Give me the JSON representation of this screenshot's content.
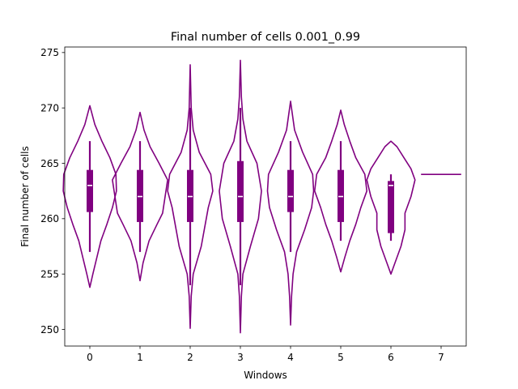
{
  "chart_data": {
    "type": "violin",
    "title": "Final number of cells 0.001_0.99",
    "xlabel": "Windows",
    "ylabel": "Final number of cells",
    "xlim": [
      -0.5,
      7.5
    ],
    "ylim": [
      248.5,
      275.5
    ],
    "x_ticks": [
      "0",
      "1",
      "2",
      "3",
      "4",
      "5",
      "6",
      "7"
    ],
    "y_ticks": [
      "250",
      "255",
      "260",
      "265",
      "270",
      "275"
    ],
    "color": "#800080",
    "median_color": "#ffffff",
    "series": [
      {
        "window": 0,
        "min": 257,
        "q1": 260.6,
        "median": 263,
        "q3": 264.4,
        "max": 267,
        "profile": [
          [
            253.8,
            0.0
          ],
          [
            255,
            0.06
          ],
          [
            256.5,
            0.14
          ],
          [
            258,
            0.22
          ],
          [
            259.5,
            0.34
          ],
          [
            261,
            0.45
          ],
          [
            262.5,
            0.53
          ],
          [
            264,
            0.52
          ],
          [
            265.5,
            0.4
          ],
          [
            267,
            0.24
          ],
          [
            268.5,
            0.1
          ],
          [
            270.2,
            0.0
          ]
        ]
      },
      {
        "window": 1,
        "min": 257,
        "q1": 259.7,
        "median": 262,
        "q3": 264.4,
        "max": 267,
        "profile": [
          [
            254.4,
            0.0
          ],
          [
            256,
            0.06
          ],
          [
            258,
            0.18
          ],
          [
            259.5,
            0.34
          ],
          [
            260.5,
            0.45
          ],
          [
            262,
            0.5
          ],
          [
            263.5,
            0.55
          ],
          [
            265,
            0.38
          ],
          [
            266.5,
            0.2
          ],
          [
            268,
            0.08
          ],
          [
            269.6,
            0.0
          ]
        ]
      },
      {
        "window": 2,
        "min": 254,
        "q1": 259.7,
        "median": 262,
        "q3": 264.4,
        "max": 270,
        "profile": [
          [
            250.1,
            0.0
          ],
          [
            253,
            0.02
          ],
          [
            255,
            0.06
          ],
          [
            257.5,
            0.22
          ],
          [
            259.5,
            0.3
          ],
          [
            261,
            0.36
          ],
          [
            262.5,
            0.45
          ],
          [
            264,
            0.41
          ],
          [
            266,
            0.18
          ],
          [
            268,
            0.06
          ],
          [
            270,
            0.02
          ],
          [
            273.9,
            0.0
          ]
        ]
      },
      {
        "window": 3,
        "min": 254,
        "q1": 259.7,
        "median": 262,
        "q3": 265.2,
        "max": 270,
        "profile": [
          [
            249.7,
            0.0
          ],
          [
            253,
            0.02
          ],
          [
            255,
            0.05
          ],
          [
            257.5,
            0.2
          ],
          [
            260,
            0.36
          ],
          [
            262.5,
            0.42
          ],
          [
            265,
            0.33
          ],
          [
            267,
            0.13
          ],
          [
            269,
            0.05
          ],
          [
            271,
            0.02
          ],
          [
            274.3,
            0.0
          ]
        ]
      },
      {
        "window": 4,
        "min": 257,
        "q1": 260.6,
        "median": 262,
        "q3": 264.4,
        "max": 267,
        "profile": [
          [
            250.4,
            0.0
          ],
          [
            253,
            0.02
          ],
          [
            255,
            0.05
          ],
          [
            257,
            0.12
          ],
          [
            259,
            0.28
          ],
          [
            261,
            0.42
          ],
          [
            262.5,
            0.46
          ],
          [
            264,
            0.44
          ],
          [
            266,
            0.24
          ],
          [
            268,
            0.08
          ],
          [
            270.6,
            0.0
          ]
        ]
      },
      {
        "window": 5,
        "min": 258,
        "q1": 259.7,
        "median": 262,
        "q3": 264.4,
        "max": 267,
        "profile": [
          [
            255.2,
            0.0
          ],
          [
            256.5,
            0.08
          ],
          [
            258,
            0.18
          ],
          [
            259.5,
            0.3
          ],
          [
            261,
            0.4
          ],
          [
            262.5,
            0.52
          ],
          [
            264,
            0.48
          ],
          [
            265.5,
            0.3
          ],
          [
            267,
            0.18
          ],
          [
            268.5,
            0.07
          ],
          [
            269.8,
            0.0
          ]
        ]
      },
      {
        "window": 6,
        "min": 258,
        "q1": 258.7,
        "median": 263,
        "q3": 263.4,
        "max": 264,
        "profile": [
          [
            255.0,
            0.0
          ],
          [
            256,
            0.08
          ],
          [
            257.5,
            0.2
          ],
          [
            259,
            0.28
          ],
          [
            260.5,
            0.28
          ],
          [
            262,
            0.4
          ],
          [
            263.5,
            0.48
          ],
          [
            264.5,
            0.4
          ],
          [
            265.5,
            0.26
          ],
          [
            266.5,
            0.12
          ],
          [
            267,
            0.0
          ]
        ]
      },
      {
        "window": 7,
        "value": 264
      }
    ]
  }
}
